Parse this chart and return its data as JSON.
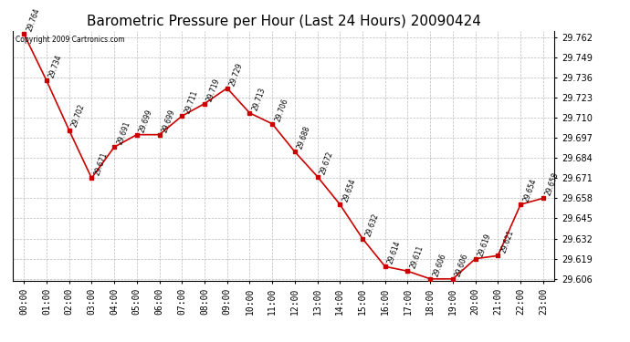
{
  "title": "Barometric Pressure per Hour (Last 24 Hours) 20090424",
  "copyright": "Copyright 2009 Cartronics.com",
  "hours": [
    "00:00",
    "01:00",
    "02:00",
    "03:00",
    "04:00",
    "05:00",
    "06:00",
    "07:00",
    "08:00",
    "09:00",
    "10:00",
    "11:00",
    "12:00",
    "13:00",
    "14:00",
    "15:00",
    "16:00",
    "17:00",
    "18:00",
    "19:00",
    "20:00",
    "21:00",
    "22:00",
    "23:00"
  ],
  "values": [
    29.764,
    29.734,
    29.702,
    29.671,
    29.691,
    29.699,
    29.699,
    29.711,
    29.719,
    29.729,
    29.713,
    29.706,
    29.688,
    29.672,
    29.654,
    29.632,
    29.614,
    29.611,
    29.606,
    29.606,
    29.619,
    29.621,
    29.654,
    29.658
  ],
  "line_color": "#cc0000",
  "marker_color": "#cc0000",
  "bg_color": "#ffffff",
  "plot_bg_color": "#ffffff",
  "grid_color": "#bbbbbb",
  "title_fontsize": 11,
  "tick_fontsize": 7,
  "ymin": 29.606,
  "ymax": 29.764,
  "ytick_interval": 0.013
}
